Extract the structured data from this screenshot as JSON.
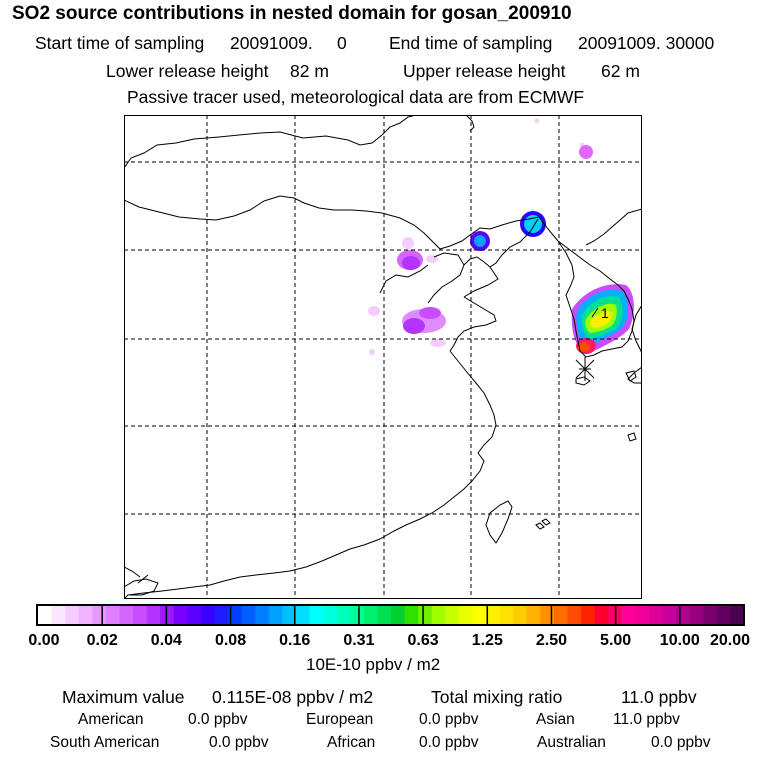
{
  "header": {
    "title": "SO2 source contributions in nested domain for gosan_200910",
    "start_label": "Start time of sampling",
    "start_value": "20091009.     0",
    "end_label": "End time of sampling",
    "end_value": "20091009. 30000",
    "lower_label": "Lower release height",
    "lower_value": "82 m",
    "upper_label": "Upper release height",
    "upper_value": "62 m",
    "note": "Passive tracer used, meteorological data are from ECMWF"
  },
  "map": {
    "marker_label": "1"
  },
  "colorbar": {
    "ticks": [
      "0.00",
      "0.02",
      "0.04",
      "0.08",
      "0.16",
      "0.31",
      "0.63",
      "1.25",
      "2.50",
      "5.00",
      "10.00",
      "20.00"
    ],
    "colors": [
      "#ffffff",
      "#fbe6ff",
      "#f5ccff",
      "#efb3ff",
      "#e699ff",
      "#dd7fff",
      "#d466ff",
      "#c84dff",
      "#b533ff",
      "#9a1aff",
      "#7a00ff",
      "#5c00ff",
      "#3a00ff",
      "#1f1aff",
      "#0040ff",
      "#0060ff",
      "#0080ff",
      "#00a0ff",
      "#00c0ff",
      "#00dfff",
      "#00ffff",
      "#00ffdd",
      "#00ffbb",
      "#00ff99",
      "#00f070",
      "#00e050",
      "#00d030",
      "#30e000",
      "#70f000",
      "#a0ff00",
      "#c8ff00",
      "#e8ff00",
      "#ffff00",
      "#fff000",
      "#ffe000",
      "#ffcc00",
      "#ffb000",
      "#ff9000",
      "#ff6e00",
      "#ff4a00",
      "#ff2200",
      "#ff0033",
      "#ff0066",
      "#ff0099",
      "#f00099",
      "#dd0099",
      "#c80099",
      "#b00090",
      "#960080",
      "#7a0070",
      "#600060",
      "#480050"
    ],
    "unit": "10E-10 ppbv / m2"
  },
  "stats": {
    "max_label": "Maximum value",
    "max_value": "0.115E-08 ppbv / m2",
    "total_label": "Total mixing ratio",
    "total_value": "11.0 ppbv",
    "regions": [
      {
        "name": "American",
        "value": "0.0 ppbv"
      },
      {
        "name": "European",
        "value": "0.0 ppbv"
      },
      {
        "name": "Asian",
        "value": "11.0 ppbv"
      },
      {
        "name": "South American",
        "value": "0.0 ppbv"
      },
      {
        "name": "African",
        "value": "0.0 ppbv"
      },
      {
        "name": "Australian",
        "value": "0.0 ppbv"
      }
    ]
  }
}
